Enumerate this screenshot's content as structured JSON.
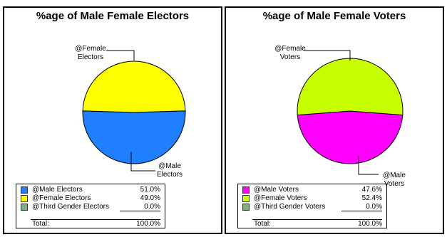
{
  "chart_data": [
    {
      "type": "pie",
      "title": "%age of Male Female Electors",
      "categories": [
        "@Male Electors",
        "@Female Electors",
        "@Third Gender Electors"
      ],
      "values": [
        51.0,
        49.0,
        0.0
      ],
      "value_labels": [
        "51.0%",
        "49.0%",
        "0.0%"
      ],
      "colors": [
        "#1f7fff",
        "#ffff00",
        "#7faf7f"
      ],
      "callouts": [
        {
          "line1": "@Male",
          "line2": "Electors"
        },
        {
          "line1": "@Female",
          "line2": "Electors"
        }
      ],
      "total_label": "Total:",
      "total_value": "100.0%",
      "legend": "bottom-left"
    },
    {
      "type": "pie",
      "title": "%age of Male Female Voters",
      "categories": [
        "@Male Voters",
        "@Female Voters",
        "@Third Gender Voters"
      ],
      "values": [
        47.6,
        52.4,
        0.0
      ],
      "value_labels": [
        "47.6%",
        "52.4%",
        "0.0%"
      ],
      "colors": [
        "#ff00ff",
        "#c8ff00",
        "#7faf7f"
      ],
      "callouts": [
        {
          "line1": "@Male",
          "line2": "Voters"
        },
        {
          "line1": "@Female",
          "line2": "Voters"
        }
      ],
      "total_label": "Total:",
      "total_value": "100.0%",
      "legend": "bottom-left"
    }
  ]
}
